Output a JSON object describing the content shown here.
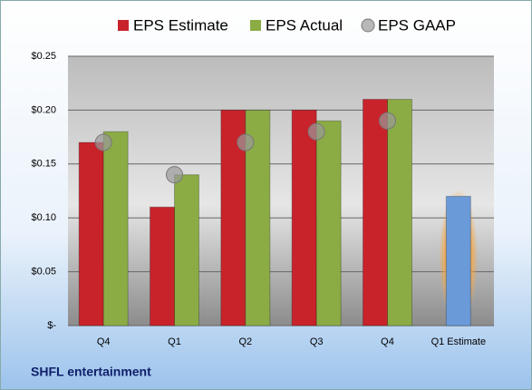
{
  "chart_data": {
    "type": "bar",
    "categories": [
      "Q4",
      "Q1",
      "Q2",
      "Q3",
      "Q4",
      "Q1 Estimate"
    ],
    "series": [
      {
        "name": "EPS Estimate",
        "color": "#c8232b",
        "values": [
          0.17,
          0.11,
          0.2,
          0.2,
          0.21,
          null
        ]
      },
      {
        "name": "EPS Actual",
        "color": "#8bab45",
        "values": [
          0.18,
          0.14,
          0.2,
          0.19,
          0.21,
          null
        ]
      },
      {
        "name": "EPS GAAP",
        "color": "#9a9a9a",
        "mark": "circle",
        "values": [
          0.17,
          0.14,
          0.17,
          0.18,
          0.19,
          null
        ]
      },
      {
        "color": "#6a9ad8",
        "values": [
          null,
          null,
          null,
          null,
          null,
          0.12
        ]
      }
    ],
    "ylim": [
      0,
      0.25
    ],
    "yticks": [
      {
        "value": 0,
        "label": "$-"
      },
      {
        "value": 0.05,
        "label": "$0.05"
      },
      {
        "value": 0.1,
        "label": "$0.10"
      },
      {
        "value": 0.15,
        "label": "$0.15"
      },
      {
        "value": 0.2,
        "label": "$0.20"
      },
      {
        "value": 0.25,
        "label": "$0.25"
      }
    ],
    "grid": true,
    "footer": "SHFL entertainment"
  }
}
